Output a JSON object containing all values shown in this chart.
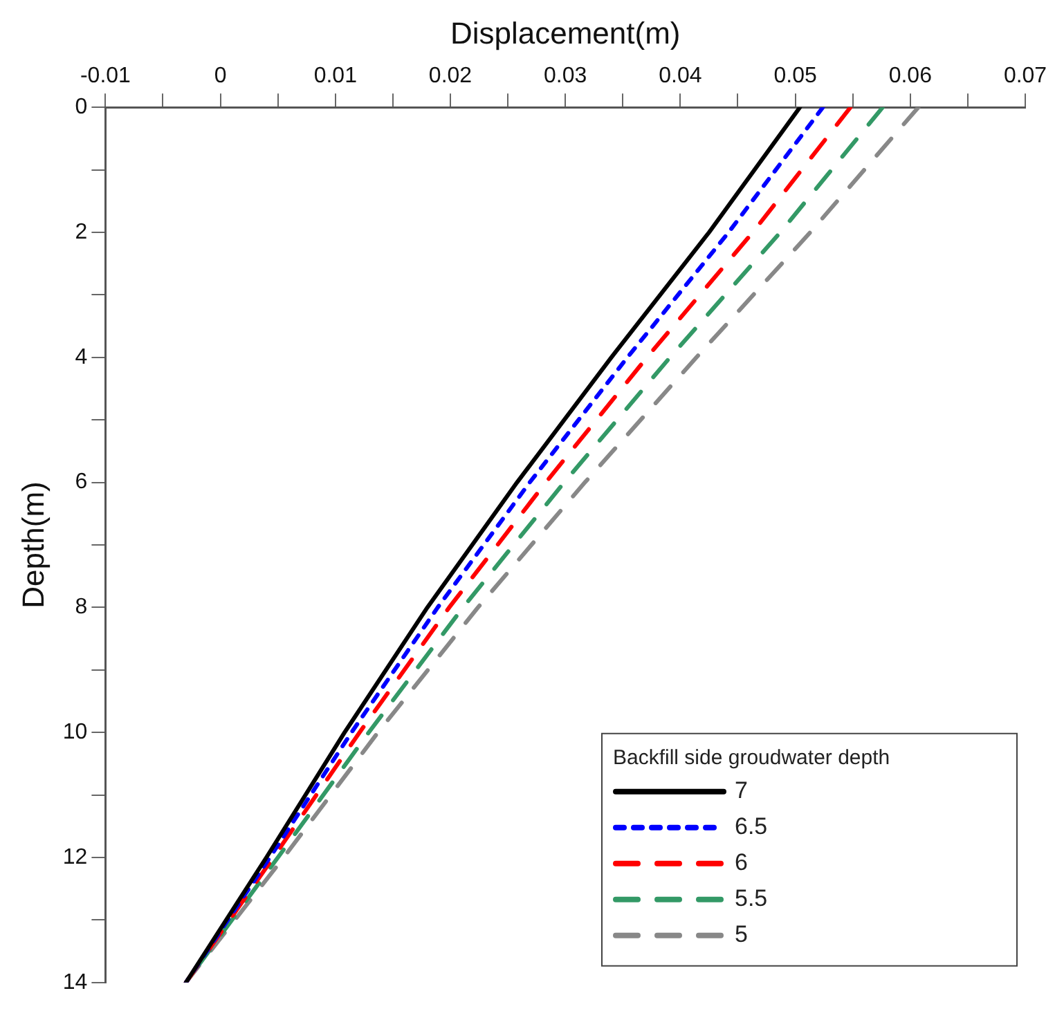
{
  "chart_data": {
    "type": "line",
    "xlabel": "Displacement(m)",
    "ylabel": "Depth(m)",
    "legend_title": "Backfill side groudwater depth",
    "legend": "bottom right",
    "grid": false,
    "marker": "none",
    "xlim": [
      -0.01,
      0.07
    ],
    "xticks": [
      -0.01,
      {
        "value": -0.005,
        "label": null
      },
      0,
      {
        "value": 0.005,
        "label": null
      },
      0.01,
      {
        "value": 0.015,
        "label": null
      },
      0.02,
      {
        "value": 0.025,
        "label": null
      },
      0.03,
      {
        "value": 0.035,
        "label": null
      },
      0.04,
      {
        "value": 0.045,
        "label": null
      },
      0.05,
      {
        "value": 0.055,
        "label": null
      },
      0.06,
      {
        "value": 0.065,
        "label": null
      },
      0.07
    ],
    "ylim": [
      14,
      0
    ],
    "yticks": [
      0,
      {
        "value": 1,
        "label": null
      },
      2,
      {
        "value": 3,
        "label": null
      },
      4,
      {
        "value": 5,
        "label": null
      },
      6,
      {
        "value": 7,
        "label": null
      },
      8,
      {
        "value": 9,
        "label": null
      },
      10,
      {
        "value": 11,
        "label": null
      },
      12,
      {
        "value": 13,
        "label": null
      },
      14
    ],
    "series": [
      {
        "name": "7",
        "color": "#000000",
        "line_style": "solid",
        "x": [
          0.0504,
          0.0425,
          0.034,
          0.0258,
          0.018,
          0.0108,
          0.004,
          -0.003
        ],
        "values": [
          0,
          2,
          4,
          6,
          8,
          10,
          12,
          14
        ]
      },
      {
        "name": "6.5",
        "color": "#0000ff",
        "line_style": "dotted",
        "x": [
          0.0524,
          0.0442,
          0.0354,
          0.0269,
          0.0189,
          0.0114,
          0.0043,
          -0.003
        ],
        "values": [
          0,
          2,
          4,
          6,
          8,
          10,
          12,
          14
        ]
      },
      {
        "name": "6",
        "color": "#ff0000",
        "line_style": "dashed",
        "x": [
          0.0548,
          0.0463,
          0.0371,
          0.0283,
          0.0199,
          0.0121,
          0.0046,
          -0.003
        ],
        "values": [
          0,
          2,
          4,
          6,
          8,
          10,
          12,
          14
        ]
      },
      {
        "name": "5.5",
        "color": "#339966",
        "line_style": "dashed",
        "x": [
          0.0576,
          0.0487,
          0.0391,
          0.0299,
          0.0211,
          0.0129,
          0.005,
          -0.003
        ],
        "values": [
          0,
          2,
          4,
          6,
          8,
          10,
          12,
          14
        ]
      },
      {
        "name": "5",
        "color": "#888888",
        "line_style": "dashed",
        "x": [
          0.0607,
          0.0513,
          0.0414,
          0.0317,
          0.0224,
          0.0137,
          0.0055,
          -0.003
        ],
        "values": [
          0,
          2,
          4,
          6,
          8,
          10,
          12,
          14
        ]
      }
    ]
  }
}
